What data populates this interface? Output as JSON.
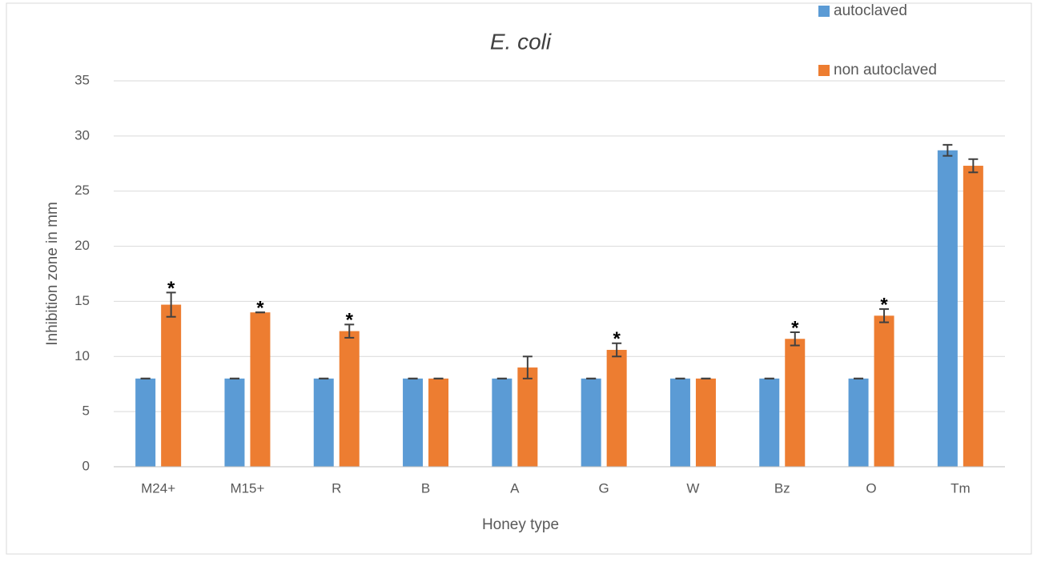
{
  "chart_data": {
    "type": "bar",
    "title": "E. coli",
    "x_label": "Honey type",
    "y_label": "Inhibition zone in mm",
    "categories": [
      "M24+",
      "M15+",
      "R",
      "B",
      "A",
      "G",
      "W",
      "Bz",
      "O",
      "Tm"
    ],
    "series": [
      {
        "name": "autoclaved",
        "color": "#5b9bd5",
        "values": [
          8,
          8,
          8,
          8,
          8,
          8,
          8,
          8,
          8,
          28.7
        ],
        "errors": [
          0,
          0,
          0,
          0,
          0,
          0,
          0,
          0,
          0,
          0.5
        ]
      },
      {
        "name": "non autoclaved",
        "color": "#ed7d31",
        "values": [
          14.7,
          14,
          12.3,
          8,
          9,
          10.6,
          8,
          11.6,
          13.7,
          27.3
        ],
        "errors": [
          1.1,
          0,
          0.6,
          0,
          1,
          0.6,
          0,
          0.6,
          0.6,
          0.6
        ],
        "significance": [
          "*",
          "*",
          "*",
          null,
          null,
          "*",
          null,
          "*",
          "*",
          null
        ]
      }
    ],
    "ylim": [
      0,
      35
    ],
    "yticks": [
      0,
      5,
      10,
      15,
      20,
      25,
      30,
      35
    ],
    "grid": true,
    "legend": "top-right"
  }
}
